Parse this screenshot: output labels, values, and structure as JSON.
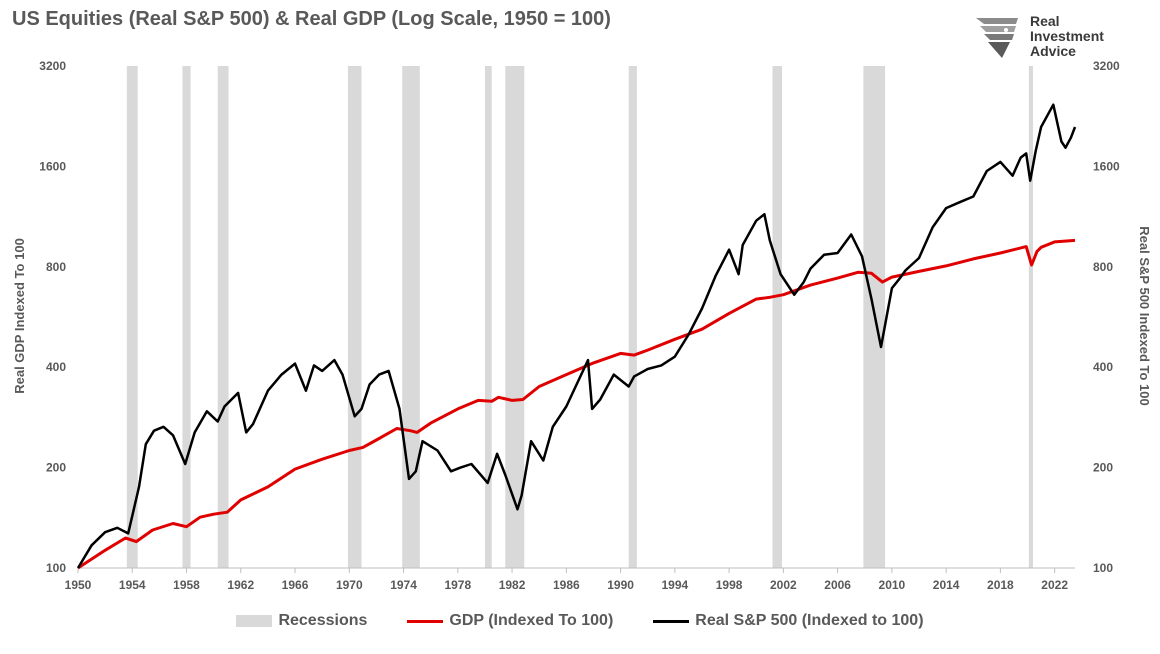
{
  "logo": {
    "line1": "Real",
    "line2": "Investment",
    "line3": "Advice"
  },
  "colors": {
    "recession": "#d9d9d9",
    "gdp": "#e00000",
    "sp500": "#000000"
  },
  "chart_data": {
    "type": "line",
    "title": "US Equities (Real S&P 500) & Real GDP (Log Scale, 1950 = 100)",
    "ylabel_left": "Real GDP Indexed To 100",
    "ylabel_right": "Real S&P 500 Indexed To 100",
    "y_scale": "log2",
    "ylim": [
      100,
      3200
    ],
    "y_ticks": [
      100,
      200,
      400,
      800,
      1600,
      3200
    ],
    "xlim": [
      1950,
      2023.5
    ],
    "x_ticks": [
      1950,
      1954,
      1958,
      1962,
      1966,
      1970,
      1974,
      1978,
      1982,
      1986,
      1990,
      1994,
      1998,
      2002,
      2006,
      2010,
      2014,
      2018,
      2022
    ],
    "grid": false,
    "legend_position": "bottom",
    "recessions": [
      [
        1953.6,
        1954.4
      ],
      [
        1957.7,
        1958.3
      ],
      [
        1960.3,
        1961.1
      ],
      [
        1969.9,
        1970.9
      ],
      [
        1973.9,
        1975.2
      ],
      [
        1980.0,
        1980.5
      ],
      [
        1981.5,
        1982.9
      ],
      [
        1990.6,
        1991.2
      ],
      [
        2001.2,
        2001.9
      ],
      [
        2007.9,
        2009.5
      ],
      [
        2020.1,
        2020.4
      ]
    ],
    "series": [
      {
        "name": "Recessions"
      },
      {
        "name": "GDP (Indexed To 100)",
        "x": [
          1950,
          1952,
          1953.5,
          1954.3,
          1955.5,
          1957,
          1958,
          1959,
          1960,
          1961,
          1962,
          1964,
          1966,
          1968,
          1970,
          1971,
          1972,
          1973.5,
          1974.5,
          1975,
          1976,
          1978,
          1979.5,
          1980.5,
          1981,
          1982,
          1982.8,
          1984,
          1986,
          1988,
          1990,
          1991,
          1992,
          1994,
          1996,
          1998,
          2000,
          2001,
          2002,
          2004,
          2006,
          2007.5,
          2008.5,
          2009.3,
          2010,
          2012,
          2014,
          2016,
          2018,
          2019.9,
          2020.3,
          2020.7,
          2021,
          2022,
          2023.5
        ],
        "values": [
          100,
          113,
          123,
          120,
          130,
          136,
          133,
          142,
          145,
          147,
          160,
          175,
          198,
          212,
          225,
          230,
          242,
          262,
          258,
          255,
          272,
          300,
          318,
          316,
          325,
          318,
          320,
          350,
          380,
          412,
          440,
          435,
          450,
          485,
          520,
          580,
          640,
          648,
          660,
          705,
          740,
          770,
          765,
          720,
          745,
          775,
          805,
          845,
          880,
          920,
          810,
          890,
          915,
          950,
          960
        ]
      },
      {
        "name": "Real S&P 500 (Indexed to 100)",
        "x": [
          1950,
          1951,
          1952,
          1952.9,
          1953.7,
          1954.5,
          1955,
          1955.6,
          1956.3,
          1957,
          1957.9,
          1958.6,
          1959.5,
          1960.3,
          1960.8,
          1961.8,
          1962.4,
          1962.9,
          1964,
          1965,
          1966,
          1966.8,
          1967.4,
          1968,
          1968.9,
          1969.5,
          1970.4,
          1970.9,
          1971.5,
          1972.2,
          1972.9,
          1973.7,
          1974.4,
          1974.9,
          1975.4,
          1976.5,
          1977.5,
          1978.2,
          1979,
          1980.2,
          1980.9,
          1981.5,
          1982.4,
          1982.7,
          1983.4,
          1984.3,
          1985,
          1986,
          1987.6,
          1987.9,
          1988.5,
          1989.5,
          1990.6,
          1991,
          1992,
          1993,
          1994,
          1995,
          1996,
          1997,
          1998,
          1998.7,
          1999,
          2000,
          2000.6,
          2001,
          2001.8,
          2002.8,
          2003.5,
          2004,
          2005,
          2006,
          2007,
          2007.8,
          2008.5,
          2009.2,
          2010,
          2010.6,
          2011,
          2012,
          2013,
          2014,
          2015,
          2016,
          2017,
          2018,
          2018.9,
          2019.5,
          2019.9,
          2020.2,
          2020.6,
          2021,
          2021.9,
          2022.5,
          2022.8,
          2023.2,
          2023.5
        ],
        "values": [
          100,
          117,
          128,
          132,
          127,
          175,
          235,
          258,
          265,
          250,
          205,
          255,
          295,
          275,
          305,
          335,
          255,
          270,
          340,
          380,
          410,
          340,
          405,
          390,
          420,
          380,
          285,
          300,
          355,
          380,
          390,
          300,
          185,
          195,
          240,
          225,
          195,
          200,
          205,
          180,
          220,
          190,
          150,
          165,
          240,
          210,
          265,
          305,
          420,
          300,
          320,
          380,
          350,
          375,
          395,
          405,
          430,
          500,
          600,
          750,
          900,
          760,
          930,
          1100,
          1150,
          960,
          760,
          660,
          720,
          790,
          870,
          880,
          1000,
          860,
          640,
          460,
          690,
          740,
          780,
          850,
          1050,
          1200,
          1250,
          1300,
          1550,
          1650,
          1500,
          1700,
          1750,
          1450,
          1780,
          2100,
          2450,
          1900,
          1820,
          1950,
          2100
        ]
      }
    ]
  }
}
